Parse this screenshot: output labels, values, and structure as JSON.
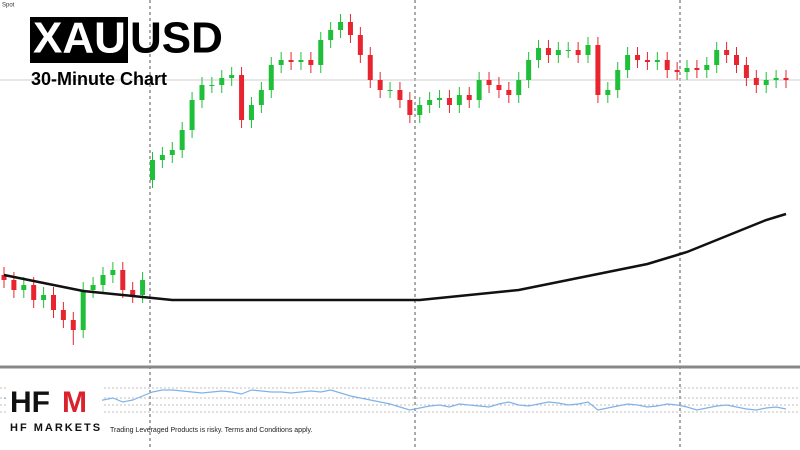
{
  "chart_data": [
    {
      "type": "candlestick",
      "spot_label": "Spot",
      "symbol_base": "XAU",
      "symbol_quote": "USD",
      "subtitle": "30-Minute Chart",
      "ylim": [
        0,
        365
      ],
      "up_color": "#1fbf3a",
      "down_color": "#e8242f",
      "price_line": 285,
      "open": [
        90,
        85,
        75,
        80,
        65,
        70,
        55,
        45,
        35,
        75,
        80,
        90,
        95,
        75,
        70,
        185,
        205,
        210,
        215,
        235,
        265,
        280,
        280,
        287,
        290,
        245,
        260,
        275,
        300,
        305,
        303,
        305,
        300,
        325,
        335,
        343,
        330,
        310,
        285,
        275,
        275,
        265,
        250,
        260,
        265,
        267,
        260,
        270,
        265,
        285,
        280,
        275,
        270,
        285,
        305,
        317,
        310,
        315,
        315,
        310,
        320,
        270,
        275,
        295,
        310,
        305,
        303,
        305,
        295,
        293,
        297,
        295,
        300,
        315,
        310,
        300,
        287,
        280,
        285,
        287
      ],
      "high": [
        98,
        93,
        88,
        88,
        78,
        78,
        63,
        53,
        83,
        88,
        98,
        103,
        103,
        83,
        93,
        213,
        218,
        223,
        243,
        273,
        288,
        288,
        295,
        298,
        298,
        268,
        283,
        308,
        313,
        313,
        313,
        313,
        333,
        343,
        351,
        351,
        338,
        318,
        293,
        283,
        283,
        273,
        268,
        273,
        275,
        275,
        278,
        278,
        293,
        293,
        288,
        283,
        293,
        313,
        325,
        325,
        323,
        323,
        323,
        328,
        328,
        283,
        303,
        318,
        318,
        313,
        313,
        313,
        303,
        305,
        305,
        308,
        323,
        323,
        318,
        308,
        295,
        293,
        295,
        295
      ],
      "low": [
        77,
        67,
        67,
        57,
        57,
        47,
        37,
        20,
        27,
        67,
        72,
        82,
        67,
        62,
        62,
        177,
        197,
        202,
        207,
        227,
        257,
        272,
        272,
        279,
        237,
        237,
        252,
        267,
        292,
        295,
        295,
        292,
        292,
        317,
        327,
        322,
        302,
        277,
        267,
        267,
        257,
        242,
        242,
        252,
        257,
        252,
        252,
        257,
        257,
        272,
        267,
        262,
        262,
        277,
        297,
        302,
        302,
        307,
        302,
        302,
        262,
        262,
        267,
        287,
        297,
        295,
        295,
        287,
        285,
        285,
        287,
        287,
        292,
        302,
        292,
        279,
        272,
        272,
        277,
        277
      ],
      "close": [
        85,
        75,
        80,
        65,
        70,
        55,
        45,
        35,
        75,
        80,
        90,
        95,
        75,
        70,
        85,
        205,
        210,
        215,
        235,
        265,
        280,
        280,
        287,
        290,
        245,
        260,
        275,
        300,
        305,
        303,
        305,
        300,
        325,
        335,
        343,
        330,
        310,
        285,
        275,
        275,
        265,
        250,
        260,
        265,
        267,
        260,
        270,
        265,
        285,
        280,
        275,
        270,
        285,
        305,
        317,
        310,
        315,
        315,
        310,
        320,
        270,
        275,
        295,
        310,
        305,
        303,
        305,
        295,
        293,
        297,
        295,
        300,
        315,
        310,
        300,
        287,
        280,
        285,
        287,
        285
      ],
      "moving_average": {
        "color": "#111111",
        "values": [
          90,
          88,
          86,
          84,
          82,
          80,
          78,
          76,
          74,
          73,
          72,
          71,
          70,
          69,
          68,
          67,
          66,
          65,
          65,
          65,
          65,
          65,
          65,
          65,
          65,
          65,
          65,
          65,
          65,
          65,
          65,
          65,
          65,
          65,
          65,
          65,
          65,
          65,
          65,
          65,
          65,
          65,
          65,
          66,
          67,
          68,
          69,
          70,
          71,
          72,
          73,
          74,
          75,
          77,
          79,
          81,
          83,
          85,
          87,
          89,
          91,
          93,
          95,
          97,
          99,
          101,
          104,
          107,
          110,
          113,
          117,
          121,
          125,
          129,
          133,
          137,
          141,
          145,
          148,
          151
        ]
      }
    },
    {
      "type": "line",
      "ylim": [
        0,
        70
      ],
      "levels": [
        52,
        42,
        35,
        28
      ],
      "color": "#7fb3e6",
      "values": [
        42,
        40,
        38,
        40,
        36,
        35,
        38,
        40,
        38,
        36,
        40,
        42,
        38,
        40,
        44,
        48,
        50,
        50,
        49,
        48,
        47,
        48,
        49,
        48,
        46,
        50,
        49,
        48,
        48,
        47,
        48,
        49,
        48,
        50,
        47,
        44,
        42,
        40,
        38,
        36,
        33,
        30,
        32,
        34,
        35,
        33,
        36,
        35,
        34,
        33,
        36,
        38,
        35,
        34,
        36,
        38,
        37,
        35,
        36,
        38,
        30,
        32,
        34,
        36,
        35,
        33,
        34,
        36,
        35,
        33,
        30,
        32,
        34,
        35,
        33,
        31,
        30,
        32,
        33,
        31
      ]
    }
  ],
  "brand": {
    "logo_left": "HF",
    "logo_right": "M",
    "name": "HF MARKETS",
    "disclaimer": "Trading Leveraged Products is risky. Terms and Conditions apply."
  }
}
